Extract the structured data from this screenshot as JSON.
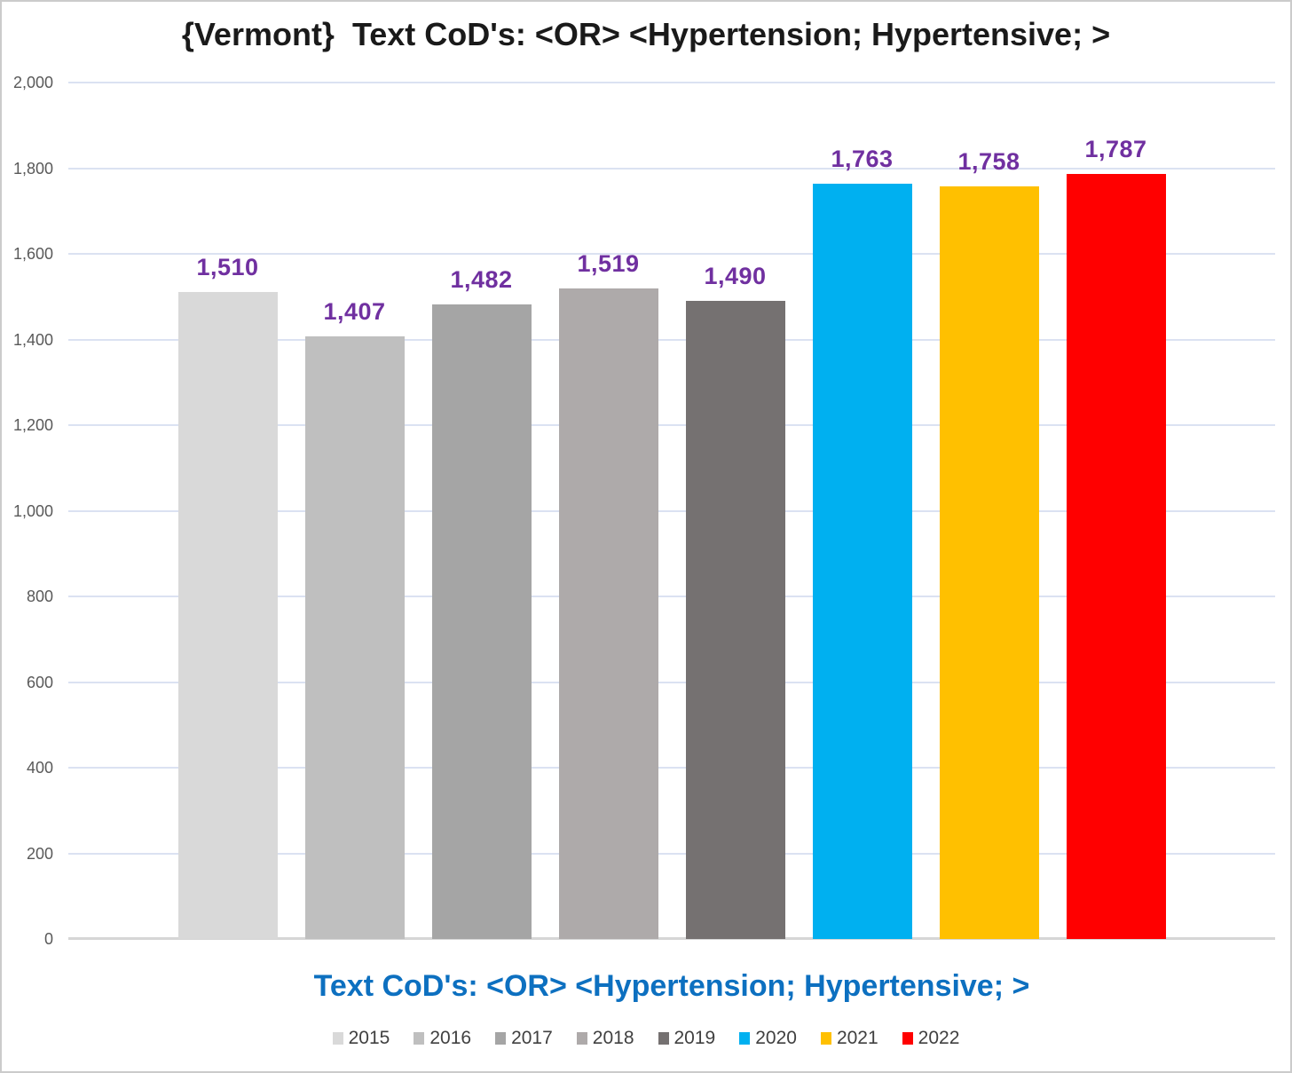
{
  "chart_data": {
    "type": "bar",
    "title": "{Vermont}  Text CoD's: <OR> <Hypertension; Hypertensive; >",
    "xlabel": "Text CoD's: <OR> <Hypertension; Hypertensive; >",
    "ylabel": "",
    "categories": [
      "2015",
      "2016",
      "2017",
      "2018",
      "2019",
      "2020",
      "2021",
      "2022"
    ],
    "values": [
      1510,
      1407,
      1482,
      1519,
      1490,
      1763,
      1758,
      1787
    ],
    "value_labels": [
      "1,510",
      "1,407",
      "1,482",
      "1,519",
      "1,490",
      "1,763",
      "1,758",
      "1,787"
    ],
    "bar_colors": [
      "#d9d9d9",
      "#bfbfbf",
      "#a5a5a5",
      "#aeaaaa",
      "#757171",
      "#00b0f0",
      "#ffc000",
      "#ff0000"
    ],
    "ylim": [
      0,
      2000
    ],
    "y_ticks": [
      {
        "value": 0,
        "label": "0"
      },
      {
        "value": 200,
        "label": "200"
      },
      {
        "value": 400,
        "label": "400"
      },
      {
        "value": 600,
        "label": "600"
      },
      {
        "value": 800,
        "label": "800"
      },
      {
        "value": 1000,
        "label": "1,000"
      },
      {
        "value": 1200,
        "label": "1,200"
      },
      {
        "value": 1400,
        "label": "1,400"
      },
      {
        "value": 1600,
        "label": "1,600"
      },
      {
        "value": 1800,
        "label": "1,800"
      },
      {
        "value": 2000,
        "label": "2,000"
      }
    ],
    "grid": true,
    "legend_position": "bottom",
    "colors": {
      "title_text": "#1a1a1a",
      "value_label_text": "#7030a0",
      "x_axis_title_text": "#0d70c0",
      "tick_label_text": "#595959",
      "gridline": "#dbe2f2",
      "axis_line": "#d6d6d6",
      "frame_border": "#cbcbcb"
    }
  }
}
